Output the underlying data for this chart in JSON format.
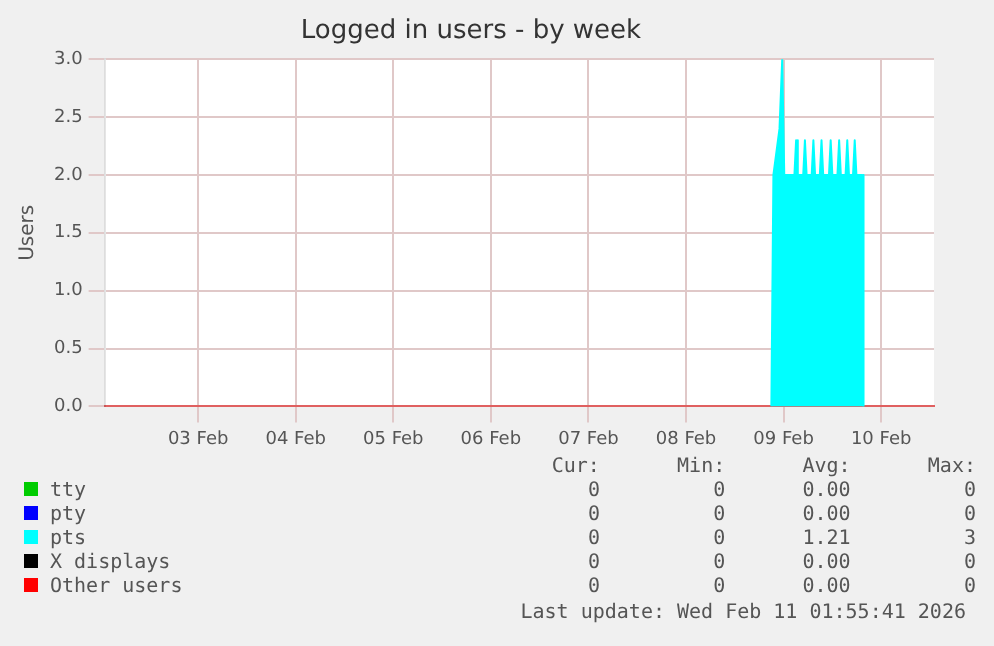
{
  "chart_data": {
    "type": "area",
    "title": "Logged in users - by week",
    "ylabel": "Users",
    "xlim": [
      "2026-02-02T13:00",
      "2026-02-11T01:00"
    ],
    "xticks": [
      {
        "value": "2026-02-03T12:00",
        "label": "03 Feb"
      },
      {
        "value": "2026-02-04T12:00",
        "label": "04 Feb"
      },
      {
        "value": "2026-02-05T12:00",
        "label": "05 Feb"
      },
      {
        "value": "2026-02-06T12:00",
        "label": "06 Feb"
      },
      {
        "value": "2026-02-07T12:00",
        "label": "07 Feb"
      },
      {
        "value": "2026-02-08T12:00",
        "label": "08 Feb"
      },
      {
        "value": "2026-02-09T12:00",
        "label": "09 Feb"
      },
      {
        "value": "2026-02-10T12:00",
        "label": "10 Feb"
      }
    ],
    "ylim": [
      0,
      3
    ],
    "yticks": [
      {
        "value": 0,
        "label": "0.0"
      },
      {
        "value": 0.5,
        "label": "0.5"
      },
      {
        "value": 1,
        "label": "1.0"
      },
      {
        "value": 1.5,
        "label": "1.5"
      },
      {
        "value": 2,
        "label": "2.0"
      },
      {
        "value": 2.5,
        "label": "2.5"
      },
      {
        "value": 3,
        "label": "3.0"
      }
    ],
    "grid": true,
    "legend": "bottom",
    "series": [
      {
        "name": "tty",
        "color": "#00cc00"
      },
      {
        "name": "pty",
        "color": "#0000ff"
      },
      {
        "name": "pts",
        "color": "#00ffff",
        "x": [
          "2026-02-09T09:00",
          "2026-02-09T09:30",
          "2026-02-09T11:00",
          "2026-02-09T11:40",
          "2026-02-09T12:10",
          "2026-02-09T14:40",
          "2026-02-09T15:05",
          "2026-02-09T15:30",
          "2026-02-09T16:50",
          "2026-02-09T17:15",
          "2026-02-09T17:40",
          "2026-02-09T18:55",
          "2026-02-09T19:20",
          "2026-02-09T19:45",
          "2026-02-09T20:55",
          "2026-02-09T21:20",
          "2026-02-09T21:45",
          "2026-02-09T23:10",
          "2026-02-09T23:35",
          "2026-02-10T00:00",
          "2026-02-10T01:15",
          "2026-02-10T01:40",
          "2026-02-10T02:05",
          "2026-02-10T03:15",
          "2026-02-10T03:40",
          "2026-02-10T04:05",
          "2026-02-10T05:05",
          "2026-02-10T05:30",
          "2026-02-10T05:55",
          "2026-02-10T07:20",
          "2026-02-10T07:40"
        ],
        "values": [
          0,
          2,
          2.4,
          3,
          2,
          2,
          2.3,
          2,
          2,
          2.3,
          2,
          2,
          2.3,
          2,
          2,
          2.3,
          2,
          2,
          2.3,
          2,
          2,
          2.3,
          2,
          2,
          2.3,
          2,
          2,
          2.3,
          2,
          2,
          0
        ]
      },
      {
        "name": "X displays",
        "color": "#000000"
      },
      {
        "name": "Other users",
        "color": "#ff0000"
      }
    ],
    "annotations": [
      "Cur:",
      "Min:",
      "Avg:",
      "Max:",
      "0",
      "0",
      "0.00",
      "0",
      "0",
      "0",
      "0.00",
      "0",
      "0",
      "0",
      "1.21",
      "3",
      "0",
      "0",
      "0.00",
      "0",
      "0",
      "0",
      "0.00",
      "0",
      "Last update: Wed Feb 11 01:55:41 2026"
    ]
  }
}
